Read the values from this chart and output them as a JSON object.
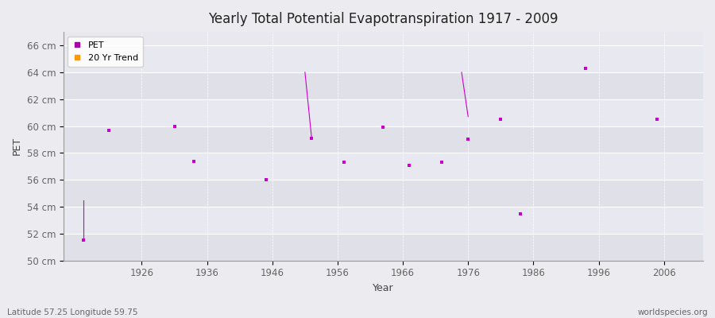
{
  "title": "Yearly Total Potential Evapotranspiration 1917 - 2009",
  "xlabel": "Year",
  "ylabel": "PET",
  "subtitle_left": "Latitude 57.25 Longitude 59.75",
  "subtitle_right": "worldspecies.org",
  "xlim": [
    1914,
    2012
  ],
  "ylim": [
    50,
    67
  ],
  "yticks": [
    50,
    52,
    54,
    56,
    58,
    60,
    62,
    64,
    66
  ],
  "ytick_labels": [
    "50 cm",
    "52 cm",
    "54 cm",
    "56 cm",
    "58 cm",
    "60 cm",
    "62 cm",
    "64 cm",
    "66 cm"
  ],
  "xticks": [
    1926,
    1936,
    1946,
    1956,
    1966,
    1976,
    1986,
    1996,
    2006
  ],
  "pet_data": [
    [
      1917,
      51.5
    ],
    [
      1921,
      59.7
    ],
    [
      1931,
      60.0
    ],
    [
      1934,
      57.4
    ],
    [
      1945,
      56.0
    ],
    [
      1952,
      59.1
    ],
    [
      1957,
      57.3
    ],
    [
      1963,
      59.9
    ],
    [
      1967,
      57.1
    ],
    [
      1972,
      57.3
    ],
    [
      1976,
      59.0
    ],
    [
      1981,
      60.5
    ],
    [
      1984,
      53.5
    ],
    [
      1994,
      64.3
    ],
    [
      2005,
      60.5
    ]
  ],
  "trend_lines": [
    {
      "x": [
        1917,
        1917
      ],
      "y": [
        54.5,
        51.5
      ]
    },
    {
      "x": [
        1951,
        1951
      ],
      "y": [
        64.0,
        59.2
      ]
    },
    {
      "x": [
        1975,
        1975
      ],
      "y": [
        64.0,
        60.7
      ]
    },
    {
      "x": [
        1952,
        1952
      ],
      "y": [
        64.0,
        59.2
      ]
    },
    {
      "x": [
        1976,
        1976
      ],
      "y": [
        64.0,
        60.7
      ]
    }
  ],
  "trend_v_lines": [
    {
      "x": 1917,
      "y_top": 54.5,
      "y_bot": 51.5
    },
    {
      "x": 1951,
      "y_top": 64.0,
      "y_bot": 59.2
    },
    {
      "x": 1975,
      "y_top": 64.0,
      "y_bot": 60.7
    }
  ],
  "pet_color": "#cc00cc",
  "trend_color": "#cc00cc",
  "bg_color": "#ebebf0",
  "plot_bg_color": "#e8e8ee",
  "grid_color": "#ffffff",
  "legend_pet_color": "#aa00aa",
  "legend_trend_color": "#ff9900"
}
